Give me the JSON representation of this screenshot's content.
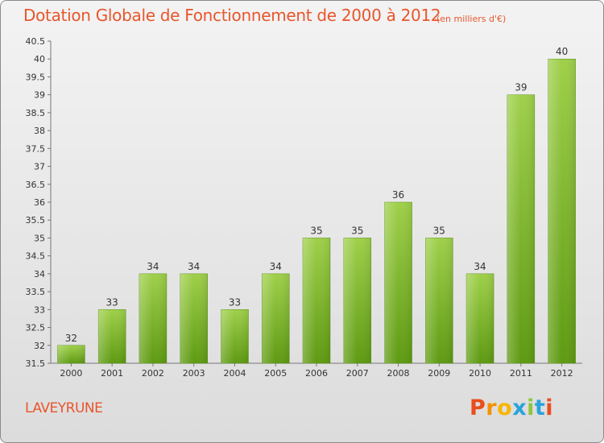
{
  "header": {
    "title": "Dotation Globale de Fonctionnement de 2000 à 2012",
    "unit": "(en milliers d'€)"
  },
  "footer": {
    "commune": "LAVEYRUNE",
    "logo_text": "Proxiti"
  },
  "colors": {
    "title": "#e8562c",
    "bar_top": "#9fd04a",
    "bar_bottom": "#5e9a12"
  },
  "chart_data": {
    "type": "bar",
    "title": "Dotation Globale de Fonctionnement de 2000 à 2012",
    "subtitle": "(en milliers d'€)",
    "categories": [
      "2000",
      "2001",
      "2002",
      "2003",
      "2004",
      "2005",
      "2006",
      "2007",
      "2008",
      "2009",
      "2010",
      "2011",
      "2012"
    ],
    "values": [
      32,
      33,
      34,
      34,
      33,
      34,
      35,
      35,
      36,
      35,
      34,
      39,
      40
    ],
    "value_labels": [
      "32",
      "33",
      "34",
      "34",
      "33",
      "34",
      "35",
      "35",
      "36",
      "35",
      "34",
      "39",
      "40"
    ],
    "ylim": [
      31.5,
      40.5
    ],
    "yticks": [
      "31.5",
      "32",
      "32.5",
      "33",
      "33.5",
      "34",
      "34.5",
      "35",
      "35.5",
      "36",
      "36.5",
      "37",
      "37.5",
      "38",
      "38.5",
      "39",
      "39.5",
      "40",
      "40.5"
    ],
    "grid": false,
    "legend": "none"
  }
}
